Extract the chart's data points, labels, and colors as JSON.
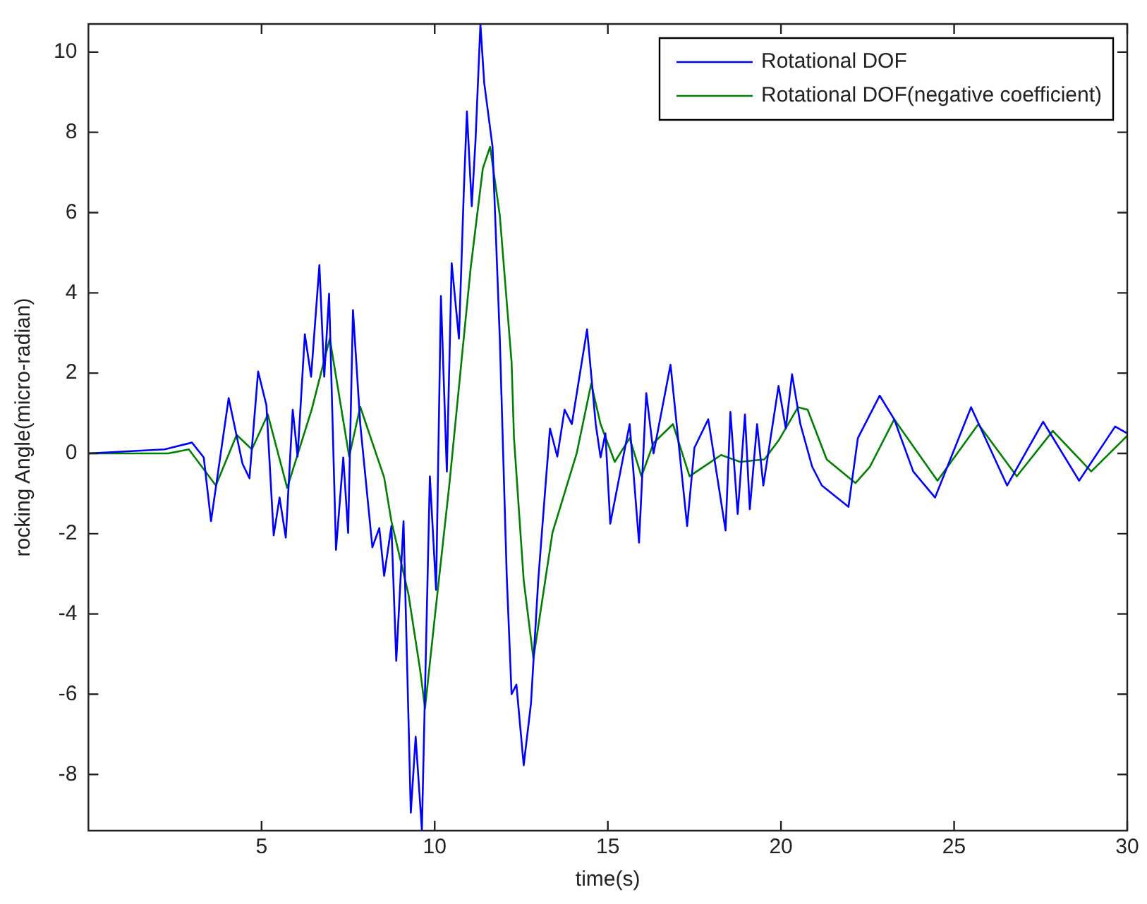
{
  "chart_data": {
    "type": "line",
    "xlabel": "time(s)",
    "ylabel": "rocking Angle(micro-radian)",
    "xlim": [
      0,
      30
    ],
    "xticks": [
      5,
      10,
      15,
      20,
      25,
      30
    ],
    "ylim": [
      -9.4,
      10.7
    ],
    "yticks": [
      -8,
      -6,
      -4,
      -2,
      0,
      2,
      4,
      6,
      8,
      10
    ],
    "grid": false,
    "legend": "top right",
    "marker": "none",
    "line_style": "solid",
    "series": [
      {
        "name": "Rotational DOF",
        "color": "#0000ff",
        "x": [
          0,
          2.2,
          2.99,
          3.33,
          3.54,
          4.05,
          4.45,
          4.65,
          4.9,
          5.14,
          5.35,
          5.52,
          5.7,
          5.9,
          6.04,
          6.25,
          6.43,
          6.67,
          6.81,
          6.95,
          7.15,
          7.36,
          7.5,
          7.64,
          7.85,
          8.2,
          8.4,
          8.54,
          8.75,
          8.89,
          9.1,
          9.31,
          9.45,
          9.63,
          9.86,
          10.04,
          10.18,
          10.35,
          10.49,
          10.7,
          10.84,
          10.93,
          11.07,
          11.18,
          11.32,
          11.43,
          11.67,
          11.88,
          12.08,
          12.22,
          12.36,
          12.57,
          12.78,
          12.99,
          13.2,
          13.33,
          13.54,
          13.75,
          13.96,
          14.17,
          14.4,
          14.65,
          14.79,
          14.93,
          15.07,
          15.63,
          15.9,
          16.11,
          16.32,
          16.81,
          17.29,
          17.5,
          17.9,
          18.4,
          18.54,
          18.75,
          18.96,
          19.1,
          19.31,
          19.49,
          19.93,
          20.14,
          20.32,
          20.56,
          20.9,
          21.18,
          21.53,
          21.95,
          22.22,
          22.85,
          23.27,
          23.82,
          24.45,
          25.49,
          26.53,
          27.57,
          28.61,
          29.65,
          30
        ],
        "values": [
          0,
          0.1,
          0.27,
          -0.1,
          -1.69,
          1.38,
          -0.26,
          -0.62,
          2.04,
          1.2,
          -2.04,
          -1.1,
          -2.1,
          1.09,
          -0.08,
          2.97,
          1.91,
          4.69,
          1.91,
          3.98,
          -2.4,
          -0.1,
          -1.98,
          3.57,
          0.73,
          -2.34,
          -1.86,
          -3.05,
          -1.81,
          -5.17,
          -1.69,
          -8.95,
          -7.06,
          -9.39,
          -0.57,
          -3.4,
          3.92,
          -0.45,
          4.74,
          2.86,
          6.52,
          8.52,
          6.16,
          7.82,
          10.7,
          9.23,
          7.64,
          2.86,
          -3.05,
          -6.0,
          -5.76,
          -7.77,
          -6.23,
          -3.16,
          -0.8,
          0.62,
          -0.08,
          1.09,
          0.73,
          1.86,
          3.09,
          0.73,
          -0.1,
          0.5,
          -1.75,
          0.73,
          -2.22,
          1.5,
          0,
          2.21,
          -1.81,
          0.14,
          0.85,
          -1.92,
          1.03,
          -1.51,
          0.97,
          -1.39,
          0.73,
          -0.8,
          1.68,
          0.62,
          1.97,
          0.73,
          -0.33,
          -0.8,
          -1.04,
          -1.33,
          0.38,
          1.44,
          0.85,
          -0.45,
          -1.1,
          1.15,
          -0.8,
          0.79,
          -0.68,
          0.67,
          0.5
        ]
      },
      {
        "name": "Rotational DOF(negative coefficient)",
        "color": "#008000",
        "x": [
          0,
          2.3,
          2.9,
          3.68,
          4.28,
          4.72,
          5.18,
          5.74,
          6.45,
          6.97,
          7.53,
          7.85,
          8.54,
          8.75,
          9.24,
          9.58,
          9.72,
          10,
          10.42,
          10.77,
          11.04,
          11.39,
          11.6,
          11.88,
          12.22,
          12.29,
          12.57,
          12.85,
          13.4,
          14.1,
          14.52,
          14.79,
          15.2,
          15.63,
          15.97,
          16.32,
          16.88,
          17.36,
          18.27,
          18.82,
          19.52,
          19.93,
          20.49,
          20.77,
          21.32,
          22.15,
          22.57,
          23.27,
          24.52,
          25.7,
          26.81,
          27.85,
          28.96,
          30
        ],
        "values": [
          0,
          0,
          0.1,
          -0.8,
          0.46,
          0.1,
          0.97,
          -0.86,
          1.1,
          2.86,
          -0.08,
          1.16,
          -0.6,
          -1.69,
          -3.5,
          -5.4,
          -6.35,
          -4.1,
          -0.8,
          2.27,
          4.63,
          7.1,
          7.64,
          5.93,
          2.27,
          0.38,
          -3.16,
          -5.11,
          -1.98,
          0,
          1.74,
          0.73,
          -0.21,
          0.38,
          -0.57,
          0.26,
          0.73,
          -0.57,
          -0.04,
          -0.21,
          -0.15,
          0.32,
          1.15,
          1.09,
          -0.15,
          -0.74,
          -0.33,
          0.85,
          -0.68,
          0.73,
          -0.57,
          0.56,
          -0.45,
          0.44
        ]
      }
    ]
  }
}
